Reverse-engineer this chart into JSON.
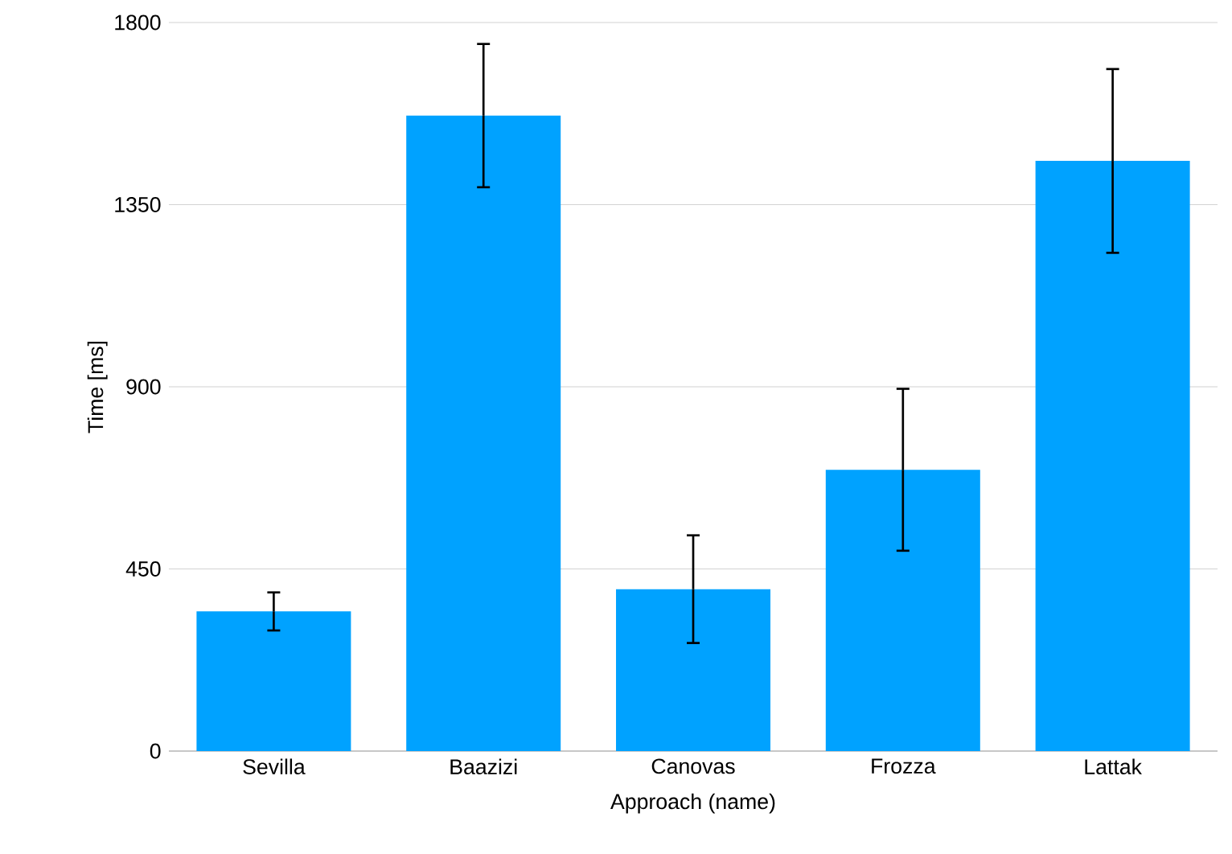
{
  "chart_data": {
    "type": "bar",
    "xlabel": "Approach (name)",
    "ylabel": "Time [ms]",
    "categories": [
      "Sevilla",
      "Baazizi",
      "Canovas",
      "Frozza",
      "Lattak"
    ],
    "values": [
      345,
      1570,
      400,
      695,
      1458
    ],
    "errors": [
      47,
      177,
      133,
      200,
      227
    ],
    "color": "#00a2ff",
    "ylim": [
      0,
      1800
    ],
    "yticks": [
      0,
      450,
      900,
      1350,
      1800
    ],
    "grid": "y"
  }
}
